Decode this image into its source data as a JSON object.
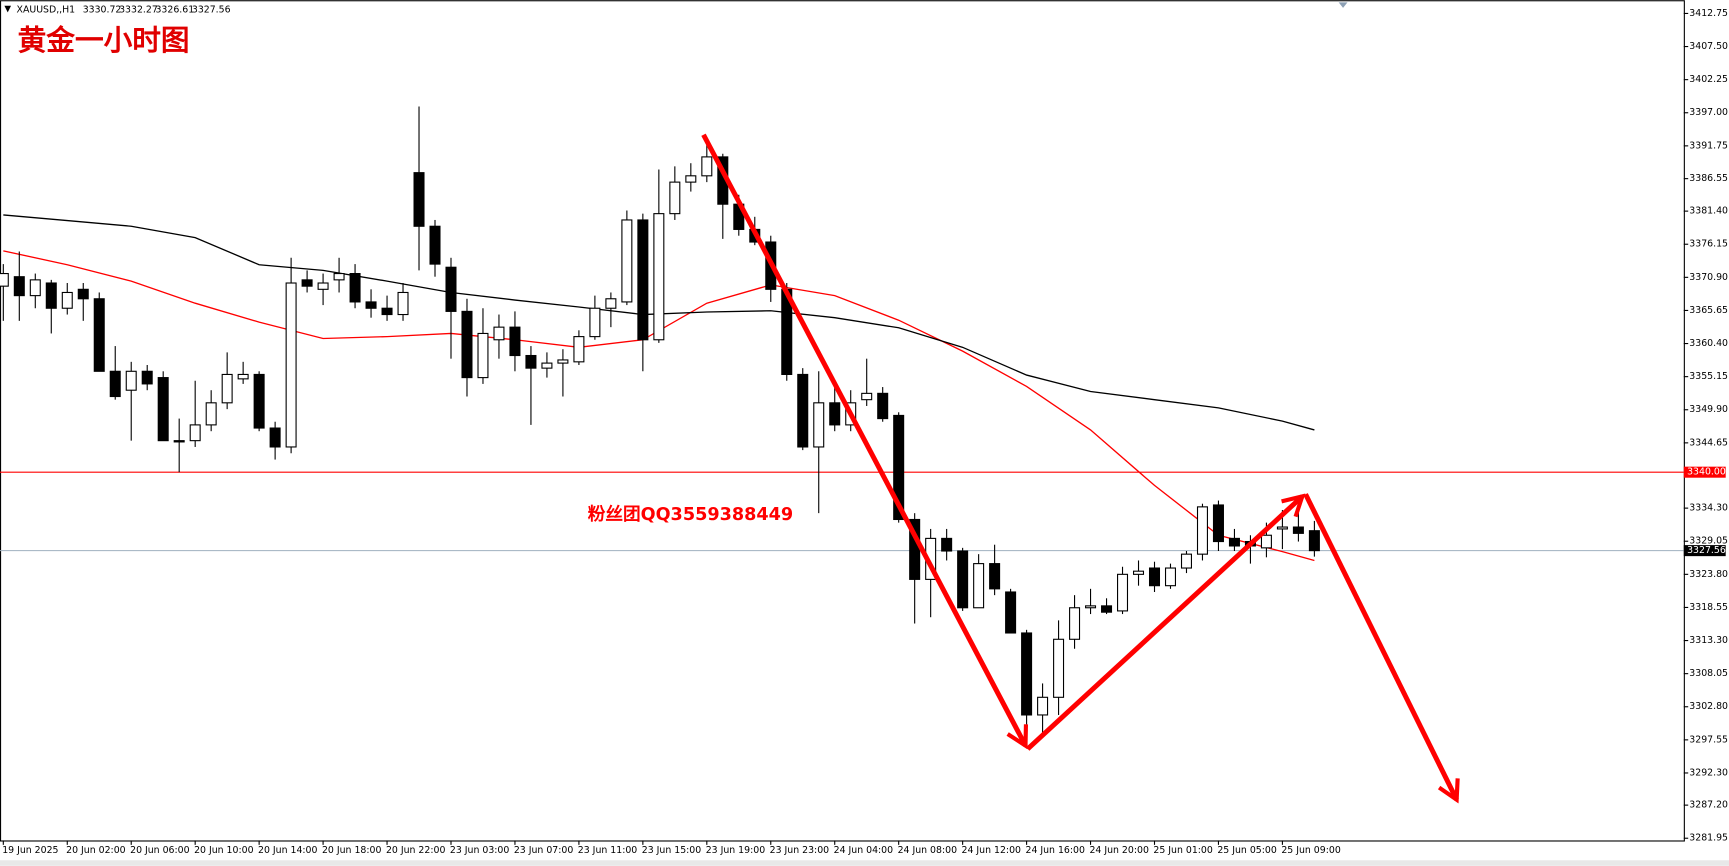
{
  "chart_data": {
    "type": "candlestick",
    "title": "黄金一小时图",
    "annotation": "粉丝团QQ3559388449",
    "symbol": "XAUUSD,,H1",
    "ohlc": [
      3330.72,
      3332.27,
      3326.61,
      3327.56
    ],
    "categories": [
      "19 Jun 2025",
      null,
      null,
      null,
      "20 Jun 02:00",
      null,
      null,
      null,
      "20 Jun 06:00",
      null,
      null,
      null,
      "20 Jun 10:00",
      null,
      null,
      null,
      "20 Jun 14:00",
      null,
      null,
      null,
      "20 Jun 18:00",
      null,
      null,
      null,
      "20 Jun 22:00",
      null,
      null,
      null,
      "23 Jun 03:00",
      null,
      null,
      null,
      "23 Jun 07:00",
      null,
      null,
      null,
      "23 Jun 11:00",
      null,
      null,
      null,
      "23 Jun 15:00",
      null,
      null,
      null,
      "23 Jun 19:00",
      null,
      null,
      null,
      "23 Jun 23:00",
      null,
      null,
      null,
      "24 Jun 04:00",
      null,
      null,
      null,
      "24 Jun 08:00",
      null,
      null,
      null,
      "24 Jun 12:00",
      null,
      null,
      null,
      "24 Jun 16:00",
      null,
      null,
      null,
      "24 Jun 20:00",
      null,
      null,
      null,
      "25 Jun 01:00",
      null,
      null,
      null,
      "25 Jun 05:00",
      null,
      null,
      null,
      "25 Jun 09:00",
      null,
      null
    ],
    "open": [
      3369.5,
      3371,
      3368,
      3370,
      3366,
      3369,
      3367.5,
      3356,
      3353,
      3356,
      3355,
      3345,
      3345,
      3347.5,
      3351,
      3354.8,
      3355.5,
      3347,
      3344,
      3370.5,
      3369,
      3370.5,
      3371.5,
      3367,
      3366,
      3365,
      3387.5,
      3379,
      3372.5,
      3365.5,
      3355,
      3361,
      3363,
      3358.5,
      3356.5,
      3357.3,
      3357.5,
      3361.5,
      3366,
      3367,
      3380,
      3361,
      3381,
      3386,
      3387,
      3390,
      3382.5,
      3378.5,
      3376.5,
      3369,
      3355.5,
      3344,
      3351,
      3347.5,
      3351.5,
      3352.5,
      3349,
      3332.5,
      3323,
      3329.5,
      3327.5,
      3318.5,
      3325.5,
      3321,
      3314.5,
      3301.5,
      3304.3,
      3313.5,
      3318.5,
      3318.8,
      3318,
      3323.8,
      3324.8,
      3322,
      3324.8,
      3327,
      3334.8,
      3329.5,
      3329,
      3328,
      3331,
      3331.3,
      3330.72
    ],
    "high": [
      3373,
      3375,
      3371.5,
      3370.5,
      3370,
      3370,
      3368.5,
      3360,
      3357.5,
      3357,
      3356,
      3348.5,
      3354.5,
      3353,
      3359,
      3357.5,
      3356,
      3348,
      3374,
      3372,
      3371.5,
      3374,
      3373,
      3369,
      3368,
      3370,
      3398,
      3380,
      3374,
      3367.5,
      3366,
      3365,
      3365.5,
      3360,
      3359,
      3359.5,
      3362.5,
      3368,
      3368.5,
      3381.5,
      3381,
      3388,
      3388.5,
      3389,
      3392,
      3390.5,
      3384,
      3380.5,
      3377.5,
      3370,
      3356.5,
      3356,
      3354.5,
      3353,
      3358,
      3353.5,
      3349.5,
      3333.5,
      3331,
      3331,
      3328,
      3327,
      3328.5,
      3321.5,
      3315,
      3306.5,
      3316.5,
      3320.5,
      3321.5,
      3320,
      3325,
      3326,
      3325.8,
      3325.5,
      3327.5,
      3335,
      3335.5,
      3331,
      3330,
      3332,
      3334,
      3334,
      3332.27
    ],
    "low": [
      3364,
      3364,
      3366,
      3362,
      3365,
      3364,
      3356,
      3351.5,
      3345,
      3353,
      3345,
      3340,
      3344,
      3346.5,
      3350,
      3354,
      3346.5,
      3342,
      3343,
      3368.5,
      3366.5,
      3368.5,
      3366,
      3364.5,
      3364,
      3364,
      3372,
      3371,
      3358,
      3352,
      3354,
      3358,
      3356,
      3347.5,
      3355,
      3352,
      3357,
      3361,
      3363,
      3366.5,
      3356,
      3360.5,
      3380,
      3384.5,
      3386,
      3377,
      3377.5,
      3376,
      3367,
      3354.5,
      3343.5,
      3333.5,
      3346.5,
      3346.5,
      3350.5,
      3348,
      3332,
      3316,
      3317,
      3326,
      3318,
      3318.5,
      3320.5,
      3314.5,
      3300,
      3298.5,
      3301.5,
      3312,
      3317.5,
      3317.5,
      3317.5,
      3322,
      3321,
      3321.5,
      3324,
      3326,
      3327.5,
      3327.5,
      3325.5,
      3326.5,
      3327.8,
      3329,
      3326.61
    ],
    "close": [
      3371.5,
      3368,
      3370.5,
      3366,
      3368.5,
      3367.5,
      3356,
      3352,
      3356,
      3354,
      3345,
      3344.8,
      3347.5,
      3351,
      3355.5,
      3355.5,
      3347,
      3344,
      3370,
      3369.5,
      3370,
      3371.5,
      3367,
      3366,
      3365,
      3368.5,
      3379,
      3373,
      3365.5,
      3355,
      3362,
      3363,
      3358.5,
      3356.5,
      3357.3,
      3357.8,
      3361.5,
      3366,
      3367.5,
      3380,
      3361,
      3381,
      3386,
      3387,
      3390,
      3382.5,
      3378.5,
      3376.5,
      3369,
      3355.5,
      3344,
      3351,
      3347.5,
      3351,
      3352.5,
      3348.5,
      3332.5,
      3323,
      3329.5,
      3327.5,
      3318.5,
      3325.5,
      3321.5,
      3314.5,
      3301.5,
      3304.3,
      3313.5,
      3318.5,
      3318.8,
      3317.8,
      3323.8,
      3324.3,
      3322,
      3324.8,
      3327,
      3334.5,
      3329,
      3328.3,
      3328.3,
      3330,
      3331.3,
      3330.3,
      3327.56
    ],
    "lines": [
      {
        "color": "#ff0000",
        "x": [
          0,
          4,
          8,
          12,
          16,
          20,
          24,
          28,
          32,
          36,
          40,
          44,
          48,
          52,
          56,
          60,
          64,
          68,
          72,
          76,
          80,
          82
        ],
        "values": [
          3375.1,
          3372.9,
          3370.3,
          3366.8,
          3363.8,
          3361.2,
          3361.5,
          3362.0,
          3361.0,
          3359.8,
          3361.0,
          3366.8,
          3369.7,
          3368.0,
          3364.1,
          3359.2,
          3353.6,
          3346.7,
          3337.9,
          3330.0,
          3327.4,
          3326.0
        ]
      },
      {
        "color": "#000000",
        "x": [
          0,
          4,
          8,
          12,
          16,
          20,
          24,
          28,
          32,
          36,
          40,
          44,
          48,
          52,
          56,
          60,
          64,
          68,
          72,
          76,
          80,
          82
        ],
        "values": [
          3380.8,
          3379.9,
          3379.0,
          3377.2,
          3372.9,
          3372.0,
          3370.3,
          3368.5,
          3367.3,
          3366.2,
          3365.0,
          3365.4,
          3365.6,
          3364.5,
          3362.9,
          3359.8,
          3355.4,
          3352.8,
          3351.5,
          3350.2,
          3348.1,
          3346.7
        ]
      }
    ],
    "hlines": [
      {
        "value": 3340,
        "label": "3340.00",
        "color": "#ff0000",
        "label_color": "#ff0000"
      },
      {
        "value": 3327.56,
        "label": "3327.56",
        "color": "#9fb0bf",
        "label_color": "#000000"
      }
    ],
    "ylim": [
      3281.6,
      3414.85
    ],
    "yticks": [
      {
        "value": 3412.75,
        "label": "3412.75"
      },
      {
        "value": 3407.5,
        "label": "3407.50"
      },
      {
        "value": 3402.25,
        "label": "3402.25"
      },
      {
        "value": 3397,
        "label": "3397.00"
      },
      {
        "value": 3391.75,
        "label": "3391.75"
      },
      {
        "value": 3386.55,
        "label": "3386.55"
      },
      {
        "value": 3381.4,
        "label": "3381.40"
      },
      {
        "value": 3376.15,
        "label": "3376.15"
      },
      {
        "value": 3370.9,
        "label": "3370.90"
      },
      {
        "value": 3365.65,
        "label": "3365.65"
      },
      {
        "value": 3360.4,
        "label": "3360.40"
      },
      {
        "value": 3355.15,
        "label": "3355.15"
      },
      {
        "value": 3349.9,
        "label": "3349.90"
      },
      {
        "value": 3344.65,
        "label": "3344.65"
      },
      {
        "value": 3334.3,
        "label": "3334.30"
      },
      {
        "value": 3329.05,
        "label": "3329.05"
      },
      {
        "value": 3323.8,
        "label": "3323.80"
      },
      {
        "value": 3318.55,
        "label": "3318.55"
      },
      {
        "value": 3313.3,
        "label": "3313.30"
      },
      {
        "value": 3308.05,
        "label": "3308.05"
      },
      {
        "value": 3302.8,
        "label": "3302.80"
      },
      {
        "value": 3297.55,
        "label": "3297.55"
      },
      {
        "value": 3292.3,
        "label": "3292.30"
      },
      {
        "value": 3287.2,
        "label": "3287.20"
      },
      {
        "value": 3281.95,
        "label": "3281.95"
      }
    ],
    "grid": false
  }
}
